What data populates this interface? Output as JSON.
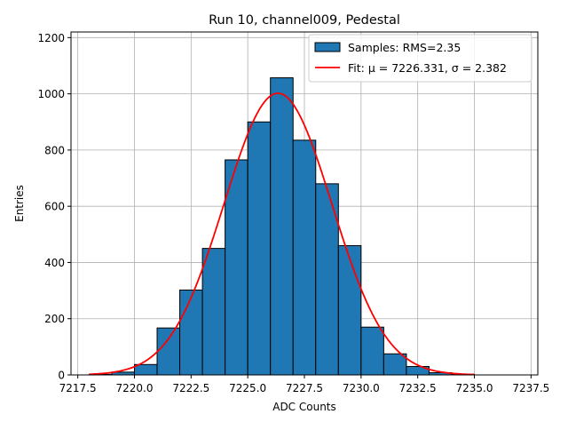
{
  "chart_data": {
    "type": "bar",
    "title": "Run 10, channel009, Pedestal",
    "xlabel": "ADC Counts",
    "ylabel": "Entries",
    "xlim": [
      7217.2,
      7237.8
    ],
    "ylim": [
      0,
      1220
    ],
    "xticks": [
      7217.5,
      7220.0,
      7222.5,
      7225.0,
      7227.5,
      7230.0,
      7232.5,
      7235.0,
      7237.5
    ],
    "xtick_labels": [
      "7217.5",
      "7220.0",
      "7222.5",
      "7225.0",
      "7227.5",
      "7230.0",
      "7232.5",
      "7235.0",
      "7237.5"
    ],
    "yticks": [
      0,
      200,
      400,
      600,
      800,
      1000,
      1200
    ],
    "ytick_labels": [
      "0",
      "200",
      "400",
      "600",
      "800",
      "1000",
      "1200"
    ],
    "grid": true,
    "legend_position": "top-right",
    "histogram": {
      "name": "Samples: RMS=2.35",
      "bin_edges": [
        7218,
        7219,
        7220,
        7221,
        7222,
        7223,
        7224,
        7225,
        7226,
        7227,
        7228,
        7229,
        7230,
        7231,
        7232,
        7233,
        7234,
        7235,
        7236,
        7237
      ],
      "counts": [
        2,
        10,
        37,
        167,
        302,
        450,
        765,
        900,
        1057,
        835,
        680,
        460,
        170,
        75,
        30,
        8,
        2,
        0,
        0
      ],
      "color": "#1f77b4",
      "edgecolor": "#000000"
    },
    "fit": {
      "name": "Fit: μ = 7226.331, σ = 2.382",
      "mu": 7226.331,
      "sigma": 2.382,
      "amplitude": 1002,
      "x_range": [
        7218,
        7235
      ],
      "color": "#ff0000"
    }
  }
}
